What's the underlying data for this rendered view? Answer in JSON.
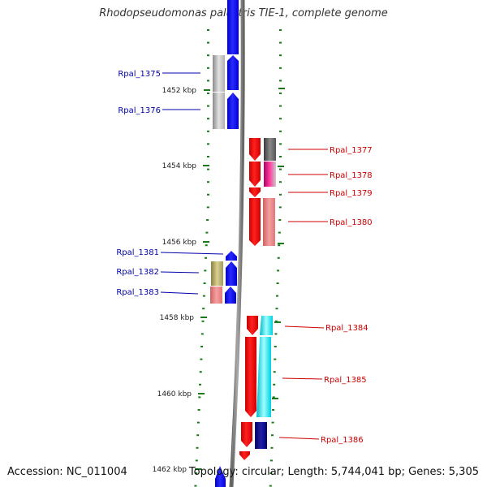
{
  "title": "Rhodopseudomonas palustris TIE-1, complete genome",
  "accession": "Accession: NC_011004",
  "topology": "Topology: circular; Length: 5,744,041 bp; Genes: 5,305",
  "ticks": [
    "1452 kbp",
    "1454 kbp",
    "1456 kbp",
    "1458 kbp",
    "1460 kbp",
    "1462 kbp"
  ],
  "colors": {
    "forward_label": "#0000aa",
    "reverse_label": "#cc0000",
    "tick": "#1a7a1a",
    "backbone": "#808080"
  },
  "genes_left": [
    {
      "name": "Rpal_1375",
      "gene_color": "#0000ff",
      "track_color": "#c0c0c0"
    },
    {
      "name": "Rpal_1376",
      "gene_color": "#0000ff",
      "track_color": "#c0c0c0"
    },
    {
      "name": "Rpal_1381",
      "gene_color": "#0000ff",
      "track_color": ""
    },
    {
      "name": "Rpal_1382",
      "gene_color": "#0000ff",
      "track_color": "#b8b070"
    },
    {
      "name": "Rpal_1383",
      "gene_color": "#0000ff",
      "track_color": "#e89090"
    }
  ],
  "genes_right": [
    {
      "name": "Rpal_1377",
      "gene_color": "#ff0000",
      "track_color": "#606060"
    },
    {
      "name": "Rpal_1378",
      "gene_color": "#ff0000",
      "track_color": "#e0208a"
    },
    {
      "name": "Rpal_1379",
      "gene_color": "#ff0000",
      "track_color": ""
    },
    {
      "name": "Rpal_1380",
      "gene_color": "#ff0000",
      "track_color": "#e88080"
    },
    {
      "name": "Rpal_1384",
      "gene_color": "#ff0000",
      "track_color": "#00e5ee"
    },
    {
      "name": "Rpal_1385",
      "gene_color": "#ff0000",
      "track_color": "#00e5ee"
    },
    {
      "name": "Rpal_1386",
      "gene_color": "#ff0000",
      "track_color": "#000080"
    }
  ]
}
